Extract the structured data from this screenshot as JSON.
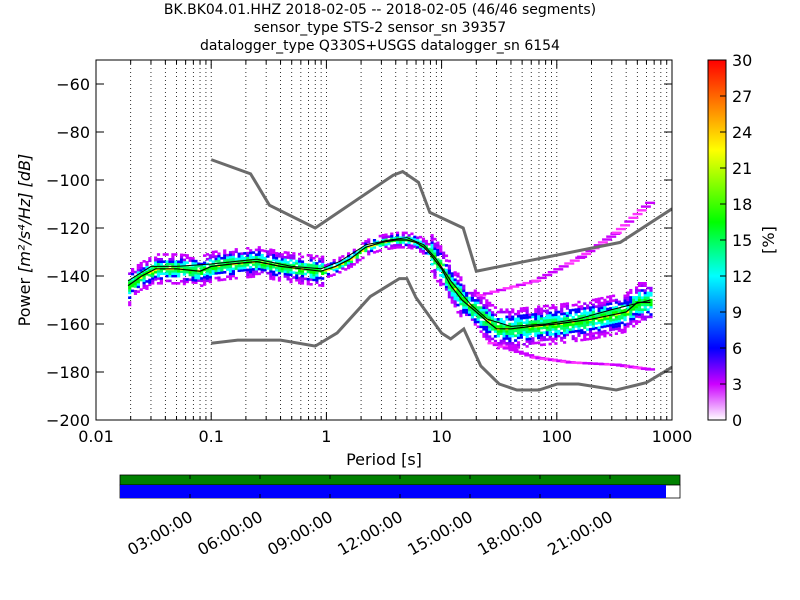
{
  "chart_data": {
    "type": "heatmap",
    "title_lines": [
      "BK.BK04.01.HHZ   2018-02-05 -- 2018-02-05  (46/46 segments)",
      "sensor_type STS-2 sensor_sn 39357",
      "datalogger_type Q330S+USGS datalogger_sn 6154"
    ],
    "xlabel": "Period [s]",
    "ylabel_prefix": "Power ",
    "ylabel_units": "[m²/s⁴/Hz] [dB]",
    "x_scale": "log",
    "xlim": [
      0.01,
      1000
    ],
    "ylim": [
      -200,
      -50
    ],
    "x_ticks": [
      {
        "value": 0.01,
        "label": "0.01"
      },
      {
        "value": 0.1,
        "label": "0.1"
      },
      {
        "value": 1,
        "label": "1"
      },
      {
        "value": 10,
        "label": "10"
      },
      {
        "value": 100,
        "label": "100"
      },
      {
        "value": 1000,
        "label": "1000"
      }
    ],
    "y_ticks": [
      {
        "value": -60,
        "label": "−60"
      },
      {
        "value": -80,
        "label": "−80"
      },
      {
        "value": -100,
        "label": "−100"
      },
      {
        "value": -120,
        "label": "−120"
      },
      {
        "value": -140,
        "label": "−140"
      },
      {
        "value": -160,
        "label": "−160"
      },
      {
        "value": -180,
        "label": "−180"
      },
      {
        "value": -200,
        "label": "−200"
      }
    ],
    "grid": "dotted vertical",
    "colorbar": {
      "label": "[%]",
      "range": [
        0,
        30
      ],
      "ticks": [
        "0",
        "3",
        "6",
        "9",
        "12",
        "15",
        "18",
        "21",
        "24",
        "27",
        "30"
      ],
      "colormap": [
        "#ffffff",
        "#cc00ff",
        "#0000ff",
        "#00ffff",
        "#00ff00",
        "#ffff00",
        "#ff0000"
      ]
    },
    "mode_curve": [
      [
        0.019,
        -144
      ],
      [
        0.025,
        -140
      ],
      [
        0.033,
        -137
      ],
      [
        0.05,
        -137
      ],
      [
        0.08,
        -138
      ],
      [
        0.1,
        -136
      ],
      [
        0.15,
        -135
      ],
      [
        0.25,
        -134
      ],
      [
        0.4,
        -136
      ],
      [
        0.6,
        -137
      ],
      [
        0.9,
        -138
      ],
      [
        1.2,
        -136
      ],
      [
        1.6,
        -133
      ],
      [
        2.2,
        -128
      ],
      [
        3,
        -126
      ],
      [
        4,
        -125
      ],
      [
        5,
        -125
      ],
      [
        6,
        -126
      ],
      [
        7,
        -128
      ],
      [
        8,
        -131
      ],
      [
        10,
        -137
      ],
      [
        12,
        -144
      ],
      [
        15,
        -150
      ],
      [
        20,
        -155
      ],
      [
        25,
        -159
      ],
      [
        30,
        -162
      ],
      [
        40,
        -162
      ],
      [
        60,
        -161
      ],
      [
        100,
        -160
      ],
      [
        200,
        -158
      ],
      [
        400,
        -155
      ],
      [
        500,
        -151
      ],
      [
        650,
        -151
      ]
    ],
    "mean_curve": [
      [
        0.019,
        -142
      ],
      [
        0.03,
        -136
      ],
      [
        0.05,
        -136
      ],
      [
        0.1,
        -135
      ],
      [
        0.25,
        -133
      ],
      [
        0.5,
        -136
      ],
      [
        0.9,
        -137
      ],
      [
        1.3,
        -134
      ],
      [
        2.2,
        -127
      ],
      [
        3.5,
        -125
      ],
      [
        5,
        -124
      ],
      [
        7,
        -127
      ],
      [
        9,
        -133
      ],
      [
        12,
        -142
      ],
      [
        18,
        -152
      ],
      [
        25,
        -158
      ],
      [
        40,
        -161
      ],
      [
        80,
        -160
      ],
      [
        150,
        -158
      ],
      [
        300,
        -154
      ],
      [
        650,
        -150
      ]
    ],
    "noise_models": [
      {
        "name": "NHNM",
        "points": [
          [
            0.1,
            -91.5
          ],
          [
            0.22,
            -97.4
          ],
          [
            0.32,
            -110.5
          ],
          [
            0.8,
            -120
          ],
          [
            3.8,
            -98
          ],
          [
            4.6,
            -96.5
          ],
          [
            6.3,
            -101
          ],
          [
            7.9,
            -113.5
          ],
          [
            15.4,
            -120
          ],
          [
            20,
            -138
          ],
          [
            354.8,
            -126
          ],
          [
            1000,
            -112
          ]
        ]
      },
      {
        "name": "NLNM",
        "points": [
          [
            0.1,
            -168
          ],
          [
            0.17,
            -166.7
          ],
          [
            0.4,
            -166.7
          ],
          [
            0.8,
            -169.2
          ],
          [
            1.24,
            -163.7
          ],
          [
            2.4,
            -148.6
          ],
          [
            4.3,
            -141.1
          ],
          [
            5,
            -141.1
          ],
          [
            6,
            -149
          ],
          [
            10,
            -163.8
          ],
          [
            12,
            -166.2
          ],
          [
            15.6,
            -162.1
          ],
          [
            21.9,
            -177.5
          ],
          [
            31.6,
            -185
          ],
          [
            45,
            -187.5
          ],
          [
            70,
            -187.5
          ],
          [
            101,
            -185
          ],
          [
            154,
            -185
          ],
          [
            328,
            -187.5
          ],
          [
            600,
            -184.4
          ],
          [
            1000,
            -178
          ]
        ]
      }
    ],
    "pdf_ridges": [
      {
        "period_min": 0.019,
        "period_max": 0.9,
        "center_db": -136,
        "spread_db": 6
      },
      {
        "period_min": 0.9,
        "period_max": 8,
        "center_db": -128,
        "spread_db": 3
      },
      {
        "period_min": 8,
        "period_max": 30,
        "center_db": -150,
        "spread_db": 8
      },
      {
        "period_min": 30,
        "period_max": 650,
        "center_db": -156,
        "spread_db": 8
      }
    ],
    "outlier_branches": [
      {
        "points": [
          [
            20,
            -148
          ],
          [
            60,
            -142
          ],
          [
            150,
            -132
          ],
          [
            300,
            -122
          ],
          [
            600,
            -109
          ]
        ]
      },
      {
        "points": [
          [
            25,
            -168
          ],
          [
            60,
            -174
          ],
          [
            120,
            -176
          ],
          [
            300,
            -177
          ],
          [
            600,
            -179
          ]
        ]
      }
    ]
  },
  "timeline": {
    "tick_labels": [
      "03:00:00",
      "06:00:00",
      "09:00:00",
      "12:00:00",
      "15:00:00",
      "18:00:00",
      "21:00:00"
    ],
    "tick_hours": [
      3,
      6,
      9,
      12,
      15,
      18,
      21
    ],
    "span_hours": 24,
    "available_fraction": 1.0,
    "used_fraction": 0.975,
    "available_color": "#008000",
    "used_color": "#0000ff"
  },
  "colors": {
    "model_line": "#6b6b6b",
    "mode_line": "#000000",
    "mean_line": "#000000"
  }
}
